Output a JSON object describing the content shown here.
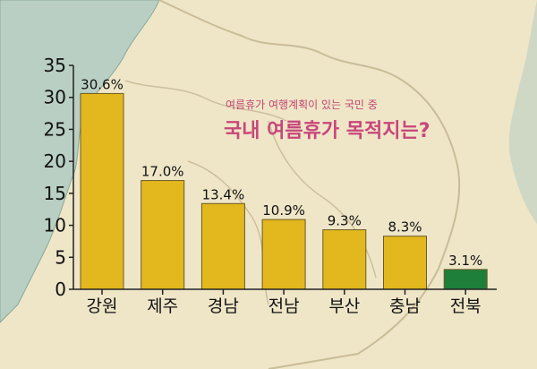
{
  "chart_data": {
    "type": "bar",
    "subtitle": "여름휴가 여행계획이 있는 국민 중",
    "title": "국내 여름휴가 목적지는?",
    "categories": [
      "강원",
      "제주",
      "경남",
      "전남",
      "부산",
      "충남",
      "전북"
    ],
    "values": [
      30.6,
      17.0,
      13.4,
      10.9,
      9.3,
      8.3,
      3.1
    ],
    "value_labels": [
      "30.6%",
      "17.0%",
      "13.4%",
      "10.9%",
      "9.3%",
      "8.3%",
      "3.1%"
    ],
    "yticks": [
      0,
      5,
      10,
      15,
      20,
      25,
      30,
      35
    ],
    "ylim": [
      0,
      35
    ],
    "grid": false,
    "xlabel": "",
    "ylabel": "",
    "bar_colors": [
      "#e3b81e",
      "#e3b81e",
      "#e3b81e",
      "#e3b81e",
      "#e3b81e",
      "#e3b81e",
      "#1d7f3a"
    ]
  },
  "colors": {
    "title": "#c8467a",
    "subtitle": "#c2456f",
    "bar": "#e3b81e",
    "highlight_bar": "#1d7f3a",
    "background": "#efe6c8",
    "sea": "#b8cfc4"
  }
}
